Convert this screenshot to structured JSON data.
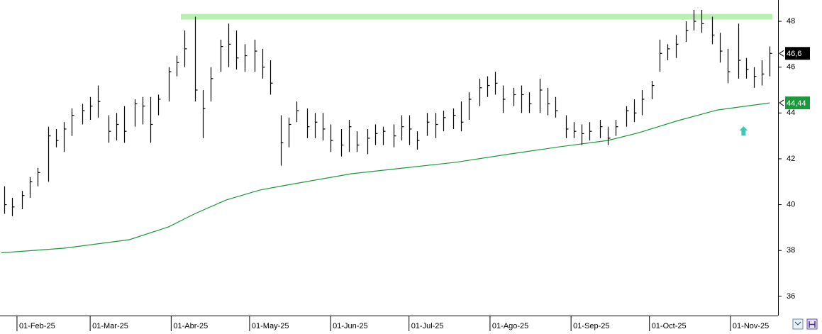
{
  "chart_data": {
    "type": "ohlc",
    "xlim": [
      25.5,
      323.2
    ],
    "ylim": [
      35.16,
      48.93
    ],
    "yticks": [
      36,
      38,
      40,
      42,
      44,
      46,
      48
    ],
    "xticks": [
      {
        "value": 32,
        "label": "01-Feb-25"
      },
      {
        "value": 60,
        "label": "01-Mar-25"
      },
      {
        "value": 91,
        "label": "01-Abr-25"
      },
      {
        "value": 121,
        "label": "01-May-25"
      },
      {
        "value": 152,
        "label": "01-Jun-25"
      },
      {
        "value": 182,
        "label": "01-Jul-25"
      },
      {
        "value": 213,
        "label": "01-Ago-25"
      },
      {
        "value": 244,
        "label": "01-Sep-25"
      },
      {
        "value": 274,
        "label": "01-Oct-25"
      },
      {
        "value": 305,
        "label": "01-Nov-25"
      }
    ],
    "bars": {
      "color": "#000000",
      "x": [
        27,
        30,
        34,
        37,
        40,
        44,
        47,
        50,
        53,
        57,
        60,
        63,
        67,
        70,
        73,
        77,
        80,
        83,
        86,
        90,
        93,
        96,
        100,
        103,
        106,
        110,
        113,
        116,
        119,
        123,
        126,
        129,
        133,
        136,
        139,
        143,
        146,
        149,
        152,
        156,
        159,
        162,
        166,
        169,
        172,
        176,
        179,
        182,
        185,
        189,
        192,
        195,
        199,
        202,
        205,
        209,
        212,
        215,
        218,
        222,
        225,
        228,
        232,
        235,
        238,
        242,
        245,
        248,
        251,
        255,
        258,
        261,
        265,
        268,
        271,
        275,
        278,
        281,
        284,
        288,
        291,
        294,
        298,
        301,
        304,
        308,
        311,
        314,
        317,
        320
      ],
      "high": [
        40.8,
        40.3,
        40.6,
        41.2,
        41.6,
        43.4,
        43.3,
        43.6,
        44.2,
        44.4,
        44.7,
        45.2,
        43.9,
        44.0,
        44.3,
        44.6,
        44.7,
        44.7,
        44.8,
        46.0,
        46.5,
        47.6,
        48.2,
        45.0,
        46.0,
        47.2,
        47.9,
        47.6,
        47.0,
        47.2,
        46.8,
        46.3,
        43.9,
        43.8,
        44.5,
        44.2,
        44.0,
        44.0,
        43.5,
        43.3,
        43.7,
        43.2,
        43.3,
        43.5,
        43.4,
        43.5,
        43.9,
        43.9,
        43.2,
        44.0,
        44.0,
        44.1,
        44.2,
        44.5,
        44.9,
        45.5,
        45.6,
        45.8,
        45.2,
        45.1,
        45.2,
        44.9,
        45.5,
        45.1,
        44.7,
        43.9,
        43.6,
        43.5,
        43.6,
        43.7,
        43.4,
        43.7,
        44.3,
        44.6,
        45.0,
        45.4,
        47.2,
        47.0,
        47.4,
        48.0,
        48.5,
        48.5,
        48.2,
        47.5,
        46.8,
        47.9,
        46.4,
        46.0,
        46.3,
        46.9
      ],
      "low": [
        39.6,
        39.5,
        39.8,
        40.3,
        40.8,
        41.0,
        42.5,
        42.3,
        43.0,
        43.5,
        43.7,
        43.8,
        42.7,
        42.8,
        42.7,
        43.4,
        43.5,
        42.7,
        43.9,
        44.5,
        45.6,
        46.0,
        44.5,
        42.9,
        44.5,
        45.8,
        46.0,
        45.9,
        45.8,
        45.8,
        45.5,
        44.8,
        41.7,
        42.5,
        43.6,
        42.9,
        42.9,
        42.8,
        42.3,
        42.1,
        42.3,
        42.3,
        42.2,
        42.6,
        42.6,
        42.5,
        42.8,
        42.6,
        42.4,
        43.0,
        42.9,
        43.2,
        43.3,
        43.2,
        43.7,
        44.3,
        44.7,
        44.8,
        44.0,
        44.3,
        44.0,
        44.0,
        44.0,
        43.9,
        43.8,
        42.9,
        42.9,
        42.6,
        42.8,
        42.9,
        42.6,
        43.0,
        43.4,
        43.6,
        43.9,
        44.6,
        45.8,
        46.3,
        46.4,
        47.1,
        47.6,
        47.5,
        47.0,
        46.2,
        45.3,
        45.5,
        45.5,
        45.1,
        45.2,
        45.6
      ],
      "close": [
        40.0,
        39.9,
        40.4,
        41.0,
        41.4,
        43.0,
        42.8,
        43.3,
        43.9,
        44.1,
        44.3,
        44.5,
        43.2,
        43.5,
        43.2,
        44.4,
        44.3,
        43.5,
        44.6,
        45.8,
        46.2,
        46.8,
        45.0,
        44.2,
        45.5,
        46.9,
        47.0,
        46.4,
        46.5,
        46.7,
        46.0,
        45.3,
        42.7,
        43.5,
        44.1,
        43.4,
        43.6,
        43.3,
        42.8,
        42.6,
        43.4,
        42.6,
        42.9,
        43.1,
        43.2,
        43.0,
        43.4,
        43.3,
        42.8,
        43.6,
        43.5,
        43.8,
        43.9,
        43.6,
        44.6,
        45.1,
        45.2,
        45.3,
        44.6,
        44.8,
        44.8,
        44.4,
        45.0,
        44.4,
        44.1,
        43.3,
        43.2,
        43.1,
        43.2,
        43.4,
        42.9,
        43.4,
        44.1,
        44.0,
        44.6,
        45.2,
        46.6,
        46.8,
        47.0,
        47.6,
        48.0,
        47.9,
        47.4,
        46.7,
        45.8,
        46.3,
        45.9,
        45.6,
        45.7,
        46.6
      ]
    },
    "ma": {
      "color": "#1a9a3a",
      "x": [
        26,
        50,
        75,
        90,
        100,
        112,
        125,
        140,
        160,
        180,
        200,
        220,
        240,
        258,
        270,
        285,
        300,
        320
      ],
      "values": [
        37.9,
        38.1,
        38.47,
        39.03,
        39.6,
        40.2,
        40.64,
        40.95,
        41.35,
        41.6,
        41.85,
        42.2,
        42.53,
        42.8,
        43.14,
        43.67,
        44.13,
        44.44
      ]
    },
    "resistance": {
      "value": 48.2,
      "x": [
        94.7,
        321
      ],
      "color": "#b8f0b0"
    },
    "last_price": {
      "value": 46.6,
      "label": "46,6"
    },
    "ma_last": {
      "value": 44.44,
      "label": "44,44"
    },
    "arrow": {
      "x": 310,
      "value": 43.2,
      "color": "#3cc8b4"
    }
  }
}
